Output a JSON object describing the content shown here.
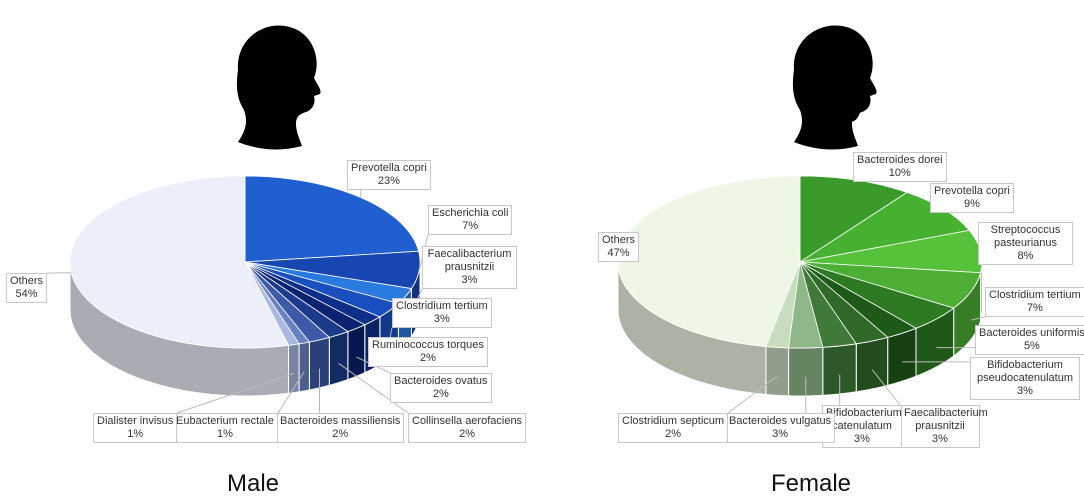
{
  "chart_data": [
    {
      "type": "pie",
      "title": "Male",
      "categories": [
        "Prevotella copri",
        "Escherichia coli",
        "Faecalibacterium prausnitzii",
        "Clostridium tertium",
        "Ruminococcus torques",
        "Bacteroides ovatus",
        "Collinsella aerofaciens",
        "Bacteroides massiliensis",
        "Eubacterium rectale",
        "Dialister invisus",
        "Others"
      ],
      "values": [
        23,
        7,
        3,
        3,
        2,
        2,
        2,
        2,
        1,
        1,
        54
      ],
      "value_labels": [
        "23%",
        "7%",
        "3%",
        "3%",
        "2%",
        "2%",
        "2%",
        "2%",
        "1%",
        "1%",
        "54%"
      ],
      "colors": [
        "#1f5fd0",
        "#1746b0",
        "#2a7ae0",
        "#1a4fc0",
        "#0d2f8a",
        "#0a2270",
        "#1b3a8c",
        "#3c5aa8",
        "#6a82c4",
        "#a9b8e0",
        "#eceff9"
      ]
    },
    {
      "type": "pie",
      "title": "Female",
      "categories": [
        "Bacteroides dorei",
        "Prevotella copri",
        "Streptococcus pasteurianus",
        "Clostridium tertium",
        "Bacteroides uniformis",
        "Bifidobacterium pseudocatenulatum",
        "Faecalibacterium prausnitzii",
        "Bifidobacterium catenulatum",
        "Bacteroides vulgatus",
        "Clostridium septicum",
        "Others"
      ],
      "values": [
        10,
        9,
        8,
        7,
        5,
        3,
        3,
        3,
        3,
        2,
        47
      ],
      "value_labels": [
        "10%",
        "9%",
        "8%",
        "7%",
        "5%",
        "3%",
        "3%",
        "3%",
        "3%",
        "2%",
        "47%"
      ],
      "colors": [
        "#3a9a2a",
        "#46b030",
        "#55c23a",
        "#4cae35",
        "#2d7a22",
        "#1e5a18",
        "#2f6a28",
        "#3f7a38",
        "#8fb888",
        "#c8dcc0",
        "#eef7e6"
      ]
    }
  ]
}
